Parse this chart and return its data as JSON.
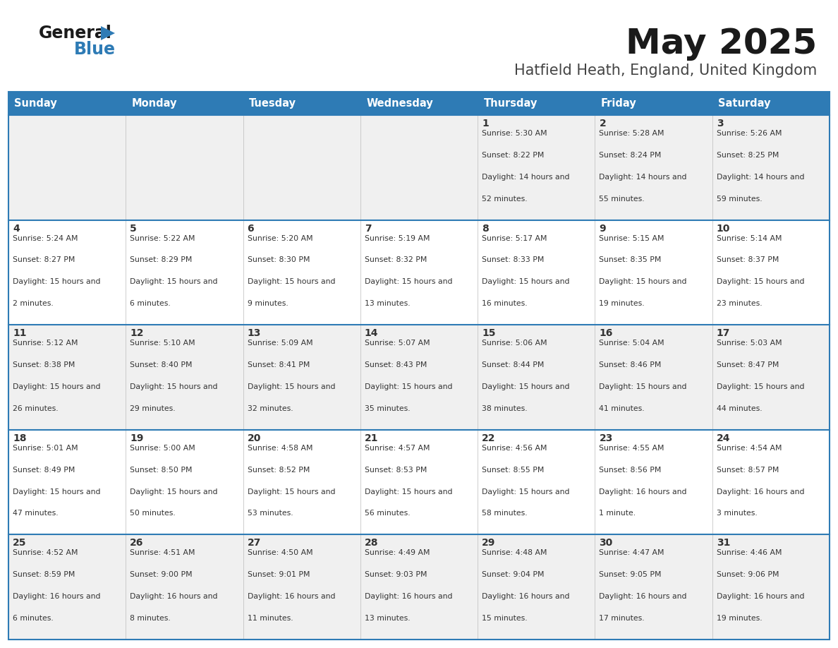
{
  "title": "May 2025",
  "subtitle": "Hatfield Heath, England, United Kingdom",
  "header_bg": "#2E7BB5",
  "header_text": "#FFFFFF",
  "day_names": [
    "Sunday",
    "Monday",
    "Tuesday",
    "Wednesday",
    "Thursday",
    "Friday",
    "Saturday"
  ],
  "row_bg_even": "#F0F0F0",
  "row_bg_odd": "#FFFFFF",
  "border_color": "#2E7BB5",
  "text_color": "#333333",
  "days": [
    {
      "day": 1,
      "col": 4,
      "row": 0,
      "sunrise": "5:30 AM",
      "sunset": "8:22 PM",
      "daylight": "14 hours and 52 minutes."
    },
    {
      "day": 2,
      "col": 5,
      "row": 0,
      "sunrise": "5:28 AM",
      "sunset": "8:24 PM",
      "daylight": "14 hours and 55 minutes."
    },
    {
      "day": 3,
      "col": 6,
      "row": 0,
      "sunrise": "5:26 AM",
      "sunset": "8:25 PM",
      "daylight": "14 hours and 59 minutes."
    },
    {
      "day": 4,
      "col": 0,
      "row": 1,
      "sunrise": "5:24 AM",
      "sunset": "8:27 PM",
      "daylight": "15 hours and 2 minutes."
    },
    {
      "day": 5,
      "col": 1,
      "row": 1,
      "sunrise": "5:22 AM",
      "sunset": "8:29 PM",
      "daylight": "15 hours and 6 minutes."
    },
    {
      "day": 6,
      "col": 2,
      "row": 1,
      "sunrise": "5:20 AM",
      "sunset": "8:30 PM",
      "daylight": "15 hours and 9 minutes."
    },
    {
      "day": 7,
      "col": 3,
      "row": 1,
      "sunrise": "5:19 AM",
      "sunset": "8:32 PM",
      "daylight": "15 hours and 13 minutes."
    },
    {
      "day": 8,
      "col": 4,
      "row": 1,
      "sunrise": "5:17 AM",
      "sunset": "8:33 PM",
      "daylight": "15 hours and 16 minutes."
    },
    {
      "day": 9,
      "col": 5,
      "row": 1,
      "sunrise": "5:15 AM",
      "sunset": "8:35 PM",
      "daylight": "15 hours and 19 minutes."
    },
    {
      "day": 10,
      "col": 6,
      "row": 1,
      "sunrise": "5:14 AM",
      "sunset": "8:37 PM",
      "daylight": "15 hours and 23 minutes."
    },
    {
      "day": 11,
      "col": 0,
      "row": 2,
      "sunrise": "5:12 AM",
      "sunset": "8:38 PM",
      "daylight": "15 hours and 26 minutes."
    },
    {
      "day": 12,
      "col": 1,
      "row": 2,
      "sunrise": "5:10 AM",
      "sunset": "8:40 PM",
      "daylight": "15 hours and 29 minutes."
    },
    {
      "day": 13,
      "col": 2,
      "row": 2,
      "sunrise": "5:09 AM",
      "sunset": "8:41 PM",
      "daylight": "15 hours and 32 minutes."
    },
    {
      "day": 14,
      "col": 3,
      "row": 2,
      "sunrise": "5:07 AM",
      "sunset": "8:43 PM",
      "daylight": "15 hours and 35 minutes."
    },
    {
      "day": 15,
      "col": 4,
      "row": 2,
      "sunrise": "5:06 AM",
      "sunset": "8:44 PM",
      "daylight": "15 hours and 38 minutes."
    },
    {
      "day": 16,
      "col": 5,
      "row": 2,
      "sunrise": "5:04 AM",
      "sunset": "8:46 PM",
      "daylight": "15 hours and 41 minutes."
    },
    {
      "day": 17,
      "col": 6,
      "row": 2,
      "sunrise": "5:03 AM",
      "sunset": "8:47 PM",
      "daylight": "15 hours and 44 minutes."
    },
    {
      "day": 18,
      "col": 0,
      "row": 3,
      "sunrise": "5:01 AM",
      "sunset": "8:49 PM",
      "daylight": "15 hours and 47 minutes."
    },
    {
      "day": 19,
      "col": 1,
      "row": 3,
      "sunrise": "5:00 AM",
      "sunset": "8:50 PM",
      "daylight": "15 hours and 50 minutes."
    },
    {
      "day": 20,
      "col": 2,
      "row": 3,
      "sunrise": "4:58 AM",
      "sunset": "8:52 PM",
      "daylight": "15 hours and 53 minutes."
    },
    {
      "day": 21,
      "col": 3,
      "row": 3,
      "sunrise": "4:57 AM",
      "sunset": "8:53 PM",
      "daylight": "15 hours and 56 minutes."
    },
    {
      "day": 22,
      "col": 4,
      "row": 3,
      "sunrise": "4:56 AM",
      "sunset": "8:55 PM",
      "daylight": "15 hours and 58 minutes."
    },
    {
      "day": 23,
      "col": 5,
      "row": 3,
      "sunrise": "4:55 AM",
      "sunset": "8:56 PM",
      "daylight": "16 hours and 1 minute."
    },
    {
      "day": 24,
      "col": 6,
      "row": 3,
      "sunrise": "4:54 AM",
      "sunset": "8:57 PM",
      "daylight": "16 hours and 3 minutes."
    },
    {
      "day": 25,
      "col": 0,
      "row": 4,
      "sunrise": "4:52 AM",
      "sunset": "8:59 PM",
      "daylight": "16 hours and 6 minutes."
    },
    {
      "day": 26,
      "col": 1,
      "row": 4,
      "sunrise": "4:51 AM",
      "sunset": "9:00 PM",
      "daylight": "16 hours and 8 minutes."
    },
    {
      "day": 27,
      "col": 2,
      "row": 4,
      "sunrise": "4:50 AM",
      "sunset": "9:01 PM",
      "daylight": "16 hours and 11 minutes."
    },
    {
      "day": 28,
      "col": 3,
      "row": 4,
      "sunrise": "4:49 AM",
      "sunset": "9:03 PM",
      "daylight": "16 hours and 13 minutes."
    },
    {
      "day": 29,
      "col": 4,
      "row": 4,
      "sunrise": "4:48 AM",
      "sunset": "9:04 PM",
      "daylight": "16 hours and 15 minutes."
    },
    {
      "day": 30,
      "col": 5,
      "row": 4,
      "sunrise": "4:47 AM",
      "sunset": "9:05 PM",
      "daylight": "16 hours and 17 minutes."
    },
    {
      "day": 31,
      "col": 6,
      "row": 4,
      "sunrise": "4:46 AM",
      "sunset": "9:06 PM",
      "daylight": "16 hours and 19 minutes."
    }
  ],
  "fig_width": 11.88,
  "fig_height": 9.18,
  "dpi": 100
}
